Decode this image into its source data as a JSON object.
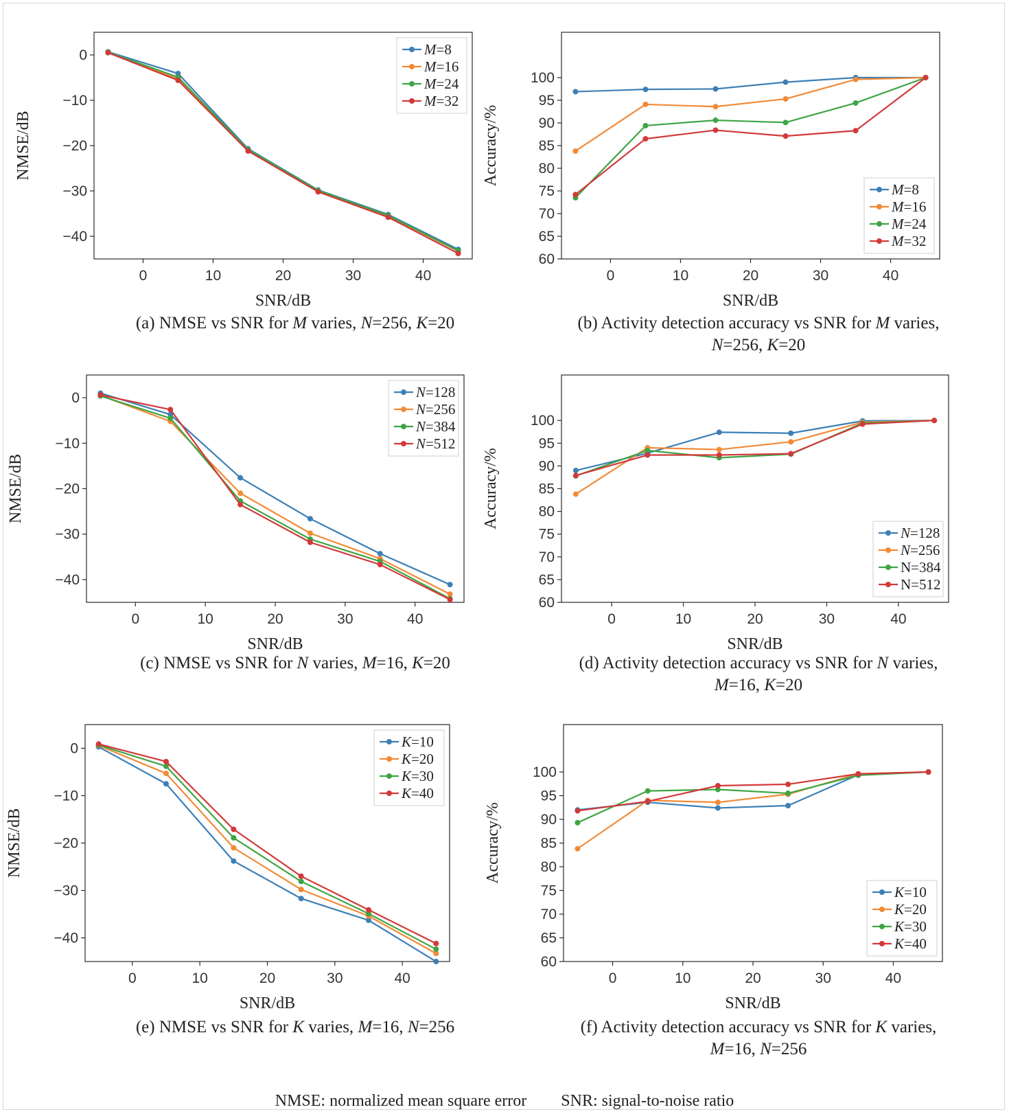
{
  "colors": {
    "series1": "#3d7fb5",
    "series2": "#f28a36",
    "series3": "#3fa444",
    "series4": "#d2393a"
  },
  "footnote": {
    "nmse": "NMSE: normalized mean square error",
    "snr": "SNR: signal-to-noise ratio"
  },
  "chart_data": [
    {
      "type": "line",
      "id": "a",
      "caption": [
        "(a) NMSE vs SNR for |M| varies, |N|=256, |K|=20"
      ],
      "xlabel": "SNR/dB",
      "ylabel": "NMSE/dB",
      "xlim": [
        -7,
        47
      ],
      "ylim": [
        -45,
        5
      ],
      "xticks": [
        0,
        10,
        20,
        30,
        40
      ],
      "yticks": [
        0,
        -10,
        -20,
        -30,
        -40
      ],
      "legend_position": "top-right",
      "x": [
        -5,
        5,
        15,
        25,
        35,
        45
      ],
      "series": [
        {
          "legend": [
            "M",
            "=8"
          ],
          "values": [
            0.7,
            -4.1,
            -20.7,
            -29.8,
            -35.2,
            -42.9
          ]
        },
        {
          "legend": [
            "M",
            "=16"
          ],
          "values": [
            0.6,
            -5.3,
            -21.0,
            -30.0,
            -35.5,
            -43.3
          ]
        },
        {
          "legend": [
            "M",
            "=24"
          ],
          "values": [
            0.6,
            -4.9,
            -20.9,
            -29.9,
            -35.4,
            -43.2
          ]
        },
        {
          "legend": [
            "M",
            "=32"
          ],
          "values": [
            0.5,
            -5.6,
            -21.2,
            -30.2,
            -35.8,
            -43.8
          ]
        }
      ]
    },
    {
      "type": "line",
      "id": "b",
      "caption": [
        "(b) Activity detection accuracy vs SNR for |M| varies,",
        "|N|=256, |K|=20"
      ],
      "xlabel": "SNR/dB",
      "ylabel": "Accuracy/%",
      "xlim": [
        -7,
        47
      ],
      "ylim": [
        60,
        110
      ],
      "xticks": [
        0,
        10,
        20,
        30,
        40
      ],
      "yticks": [
        60,
        65,
        70,
        75,
        80,
        85,
        90,
        95,
        100
      ],
      "legend_position": "bottom-right",
      "x": [
        -5,
        5,
        15,
        25,
        35,
        45
      ],
      "series": [
        {
          "legend": [
            "M",
            "=8"
          ],
          "values": [
            96.9,
            97.4,
            97.5,
            99.0,
            100.0,
            100.0
          ]
        },
        {
          "legend": [
            "M",
            "=16"
          ],
          "values": [
            83.8,
            94.1,
            93.6,
            95.3,
            99.6,
            100.0
          ]
        },
        {
          "legend": [
            "M",
            "=24"
          ],
          "values": [
            73.5,
            89.4,
            90.6,
            90.1,
            94.4,
            100.0
          ]
        },
        {
          "legend": [
            "M",
            "=32"
          ],
          "values": [
            74.2,
            86.5,
            88.4,
            87.1,
            88.3,
            100.0
          ]
        }
      ]
    },
    {
      "type": "line",
      "id": "c",
      "caption": [
        "(c) NMSE vs SNR for |N| varies, |M|=16, |K|=20"
      ],
      "xlabel": "SNR/dB",
      "ylabel": "NMSE/dB",
      "xlim": [
        -7,
        47
      ],
      "ylim": [
        -45,
        5
      ],
      "xticks": [
        0,
        10,
        20,
        30,
        40
      ],
      "yticks": [
        0,
        -10,
        -20,
        -30,
        -40
      ],
      "legend_position": "top-right",
      "x": [
        -5,
        5,
        15,
        25,
        35,
        45
      ],
      "series": [
        {
          "legend": [
            "N",
            "=128"
          ],
          "values": [
            1.0,
            -3.7,
            -17.6,
            -26.6,
            -34.3,
            -41.1
          ]
        },
        {
          "legend": [
            "N",
            "=256"
          ],
          "values": [
            0.5,
            -5.2,
            -21.0,
            -29.8,
            -35.4,
            -43.2
          ]
        },
        {
          "legend": [
            "N",
            "=384"
          ],
          "values": [
            0.4,
            -4.5,
            -22.7,
            -31.1,
            -36.0,
            -44.2
          ]
        },
        {
          "legend": [
            "N",
            "=512"
          ],
          "values": [
            0.6,
            -2.6,
            -23.5,
            -31.8,
            -36.7,
            -44.4
          ]
        }
      ]
    },
    {
      "type": "line",
      "id": "d",
      "caption": [
        "(d) Activity detection accuracy vs SNR for |N| varies,",
        "|M|=16, |K|=20"
      ],
      "xlabel": "SNR/dB",
      "ylabel": "Accuracy/%",
      "xlim": [
        -7,
        47
      ],
      "ylim": [
        60,
        110
      ],
      "xticks": [
        0,
        10,
        20,
        30,
        40
      ],
      "yticks": [
        60,
        65,
        70,
        75,
        80,
        85,
        90,
        95,
        100
      ],
      "legend_position": "bottom-right",
      "x": [
        -5,
        5,
        15,
        25,
        35,
        45
      ],
      "series": [
        {
          "legend": [
            "N",
            "=128"
          ],
          "values": [
            89.0,
            92.8,
            97.4,
            97.2,
            99.9,
            100.0
          ]
        },
        {
          "legend": [
            "N",
            "=256"
          ],
          "values": [
            83.8,
            94.0,
            93.6,
            95.3,
            99.6,
            100.0
          ]
        },
        {
          "legend": [
            "",
            "N=384"
          ],
          "values": [
            87.8,
            93.4,
            91.8,
            92.6,
            99.4,
            100.0
          ]
        },
        {
          "legend": [
            "",
            "N=512"
          ],
          "values": [
            87.9,
            92.4,
            92.4,
            92.7,
            99.2,
            100.0
          ]
        }
      ]
    },
    {
      "type": "line",
      "id": "e",
      "caption": [
        "(e) NMSE vs SNR for |K| varies, |M|=16, |N|=256"
      ],
      "xlabel": "SNR/dB",
      "ylabel": "NMSE/dB",
      "xlim": [
        -7,
        47
      ],
      "ylim": [
        -45,
        5
      ],
      "xticks": [
        0,
        10,
        20,
        30,
        40
      ],
      "yticks": [
        0,
        -10,
        -20,
        -30,
        -40
      ],
      "legend_position": "top-right",
      "x": [
        -5,
        5,
        15,
        25,
        35,
        45
      ],
      "series": [
        {
          "legend": [
            "K",
            "=10"
          ],
          "values": [
            0.3,
            -7.5,
            -23.8,
            -31.7,
            -36.3,
            -45.0
          ]
        },
        {
          "legend": [
            "K",
            "=20"
          ],
          "values": [
            0.6,
            -5.3,
            -21.0,
            -29.8,
            -35.4,
            -43.3
          ]
        },
        {
          "legend": [
            "K",
            "=30"
          ],
          "values": [
            0.7,
            -3.8,
            -18.9,
            -28.1,
            -34.9,
            -42.4
          ]
        },
        {
          "legend": [
            "K",
            "=40"
          ],
          "values": [
            0.9,
            -2.8,
            -17.1,
            -27.0,
            -34.1,
            -41.2
          ]
        }
      ]
    },
    {
      "type": "line",
      "id": "f",
      "caption": [
        "(f) Activity detection accuracy vs SNR for |K| varies,",
        "|M|=16, |N|=256"
      ],
      "xlabel": "SNR/dB",
      "ylabel": "Accuracy/%",
      "xlim": [
        -7,
        47
      ],
      "ylim": [
        60,
        110
      ],
      "xticks": [
        0,
        10,
        20,
        30,
        40
      ],
      "yticks": [
        60,
        65,
        70,
        75,
        80,
        85,
        90,
        95,
        100
      ],
      "legend_position": "bottom-right",
      "x": [
        -5,
        5,
        15,
        25,
        35,
        45
      ],
      "series": [
        {
          "legend": [
            "K",
            "=10"
          ],
          "values": [
            92.0,
            93.6,
            92.4,
            92.9,
            99.4,
            100.0
          ]
        },
        {
          "legend": [
            "K",
            "=20"
          ],
          "values": [
            83.8,
            94.0,
            93.6,
            95.3,
            99.6,
            100.0
          ]
        },
        {
          "legend": [
            "K",
            "=30"
          ],
          "values": [
            89.3,
            96.0,
            96.3,
            95.5,
            99.3,
            100.0
          ]
        },
        {
          "legend": [
            "K",
            "=40"
          ],
          "values": [
            91.8,
            93.8,
            97.1,
            97.4,
            99.6,
            100.0
          ]
        }
      ]
    }
  ]
}
